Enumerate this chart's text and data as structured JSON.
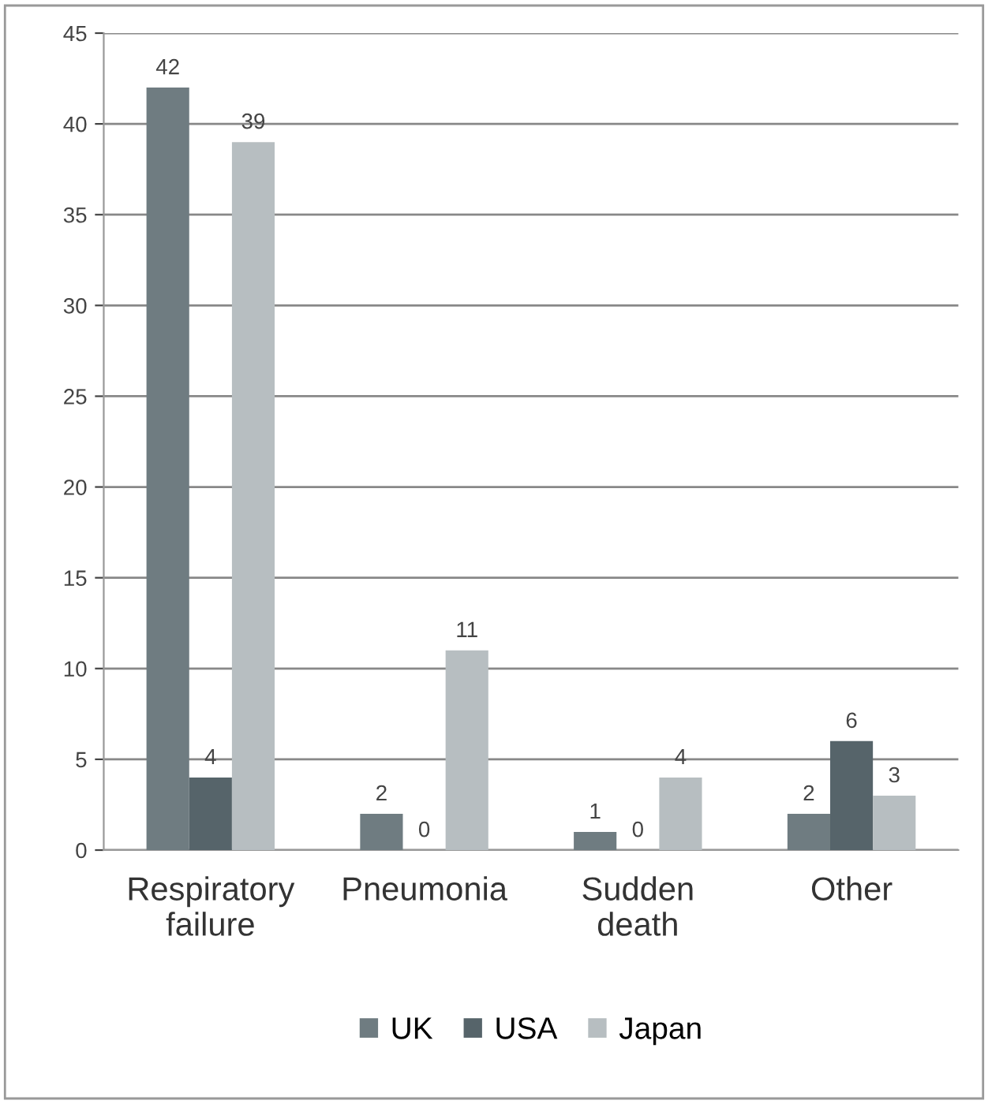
{
  "chart_data": {
    "type": "bar",
    "categories": [
      "Respiratory\nfailure",
      "Pneumonia",
      "Sudden\ndeath",
      "Other"
    ],
    "series": [
      {
        "name": "UK",
        "color": "#6f7c81",
        "values": [
          42,
          2,
          1,
          2
        ]
      },
      {
        "name": "USA",
        "color": "#56646a",
        "values": [
          4,
          0,
          0,
          6
        ]
      },
      {
        "name": "Japan",
        "color": "#b7bec1",
        "values": [
          39,
          11,
          4,
          3
        ]
      }
    ],
    "ylim": [
      0,
      45
    ],
    "yticks": [
      0,
      5,
      10,
      15,
      20,
      25,
      30,
      35,
      40,
      45
    ],
    "grid": "y",
    "legend": "bottom",
    "data_labels": true
  }
}
